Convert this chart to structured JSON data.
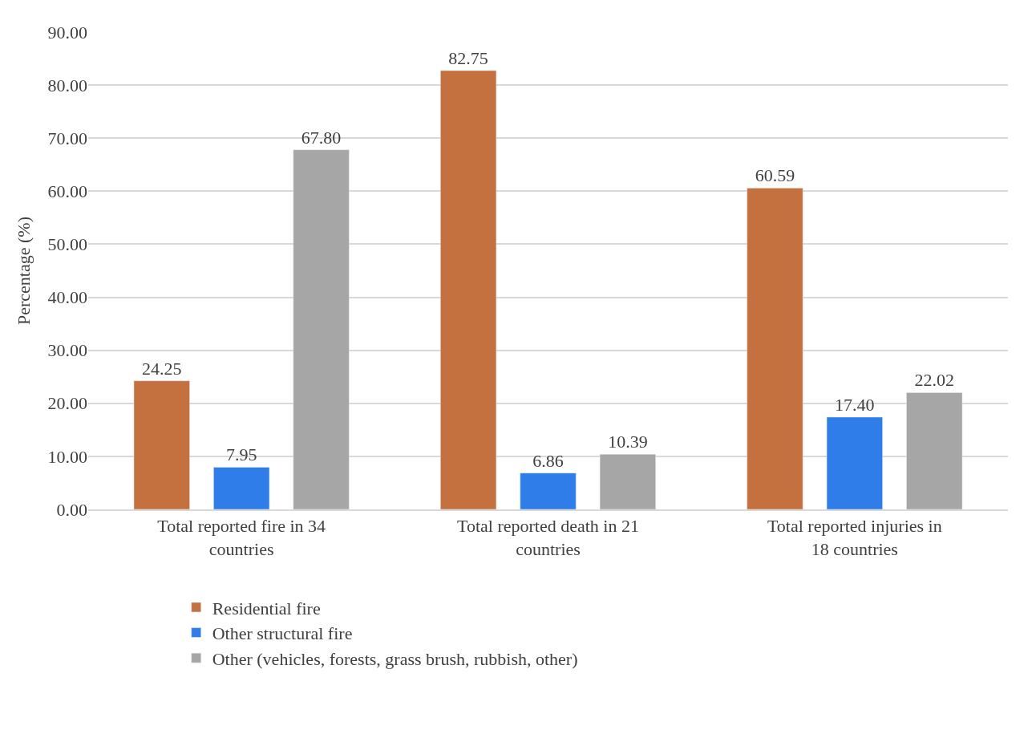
{
  "chart_data": {
    "type": "bar",
    "ylabel": "Percentage (%)",
    "categories": [
      "Total reported fire in 34 countries",
      "Total reported death in 21 countries",
      "Total reported injuries in 18 countries"
    ],
    "series": [
      {
        "name": "Residential fire",
        "color": "#c5703f",
        "values": [
          24.25,
          82.75,
          60.59
        ]
      },
      {
        "name": "Other structural fire",
        "color": "#2e7de9",
        "values": [
          7.95,
          6.86,
          17.4
        ]
      },
      {
        "name": "Other (vehicles, forests, grass brush, rubbish, other)",
        "color": "#a6a6a6",
        "values": [
          67.8,
          10.39,
          22.02
        ]
      }
    ],
    "value_labels": [
      [
        "24.25",
        "82.75",
        "60.59"
      ],
      [
        "7.95",
        "6.86",
        "17.40"
      ],
      [
        "67.80",
        "10.39",
        "22.02"
      ]
    ],
    "ylim": [
      0,
      90
    ],
    "yticks": [
      {
        "value": 0,
        "label": "0.00"
      },
      {
        "value": 10,
        "label": "10.00"
      },
      {
        "value": 20,
        "label": "20.00"
      },
      {
        "value": 30,
        "label": "30.00"
      },
      {
        "value": 40,
        "label": "40.00"
      },
      {
        "value": 50,
        "label": "50.00"
      },
      {
        "value": 60,
        "label": "60.00"
      },
      {
        "value": 70,
        "label": "70.00"
      },
      {
        "value": 80,
        "label": "80.00"
      },
      {
        "value": 90,
        "label": "90.00"
      }
    ],
    "grid": "y",
    "legend": "bottom left"
  }
}
